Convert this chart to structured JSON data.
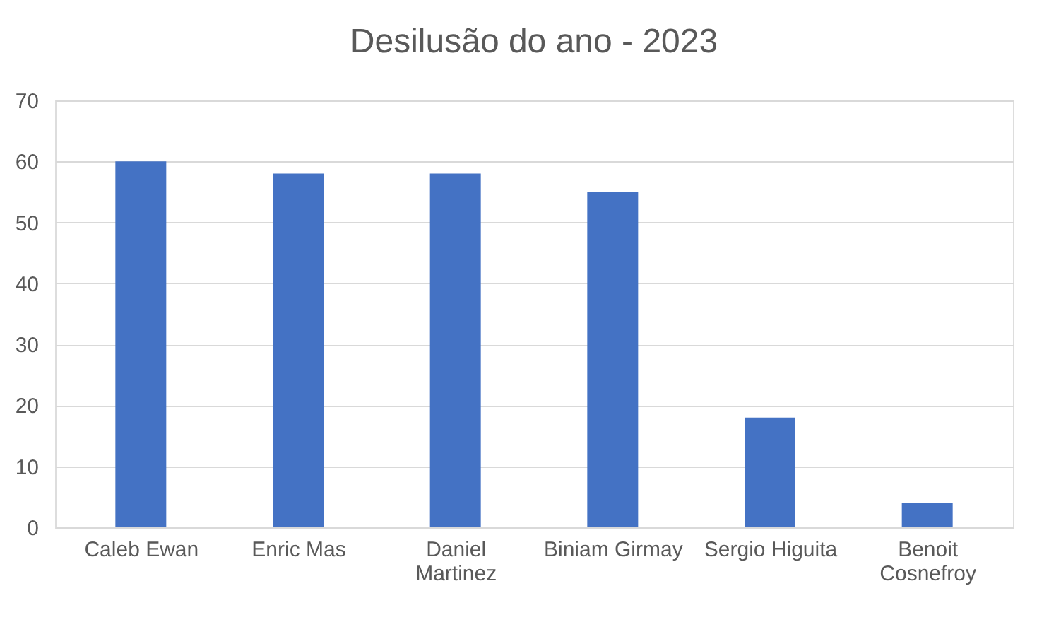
{
  "chart_data": {
    "type": "bar",
    "title": "Desilusão do ano - 2023",
    "categories": [
      "Caleb Ewan",
      "Enric Mas",
      "Daniel Martinez",
      "Biniam Girmay",
      "Sergio Higuita",
      "Benoit Cosnefroy"
    ],
    "values": [
      60,
      58,
      58,
      55,
      18,
      4
    ],
    "color": "#4472c4",
    "ylim": [
      0,
      70
    ],
    "yticks": [
      0,
      10,
      20,
      30,
      40,
      50,
      60,
      70
    ],
    "grid": "y"
  }
}
